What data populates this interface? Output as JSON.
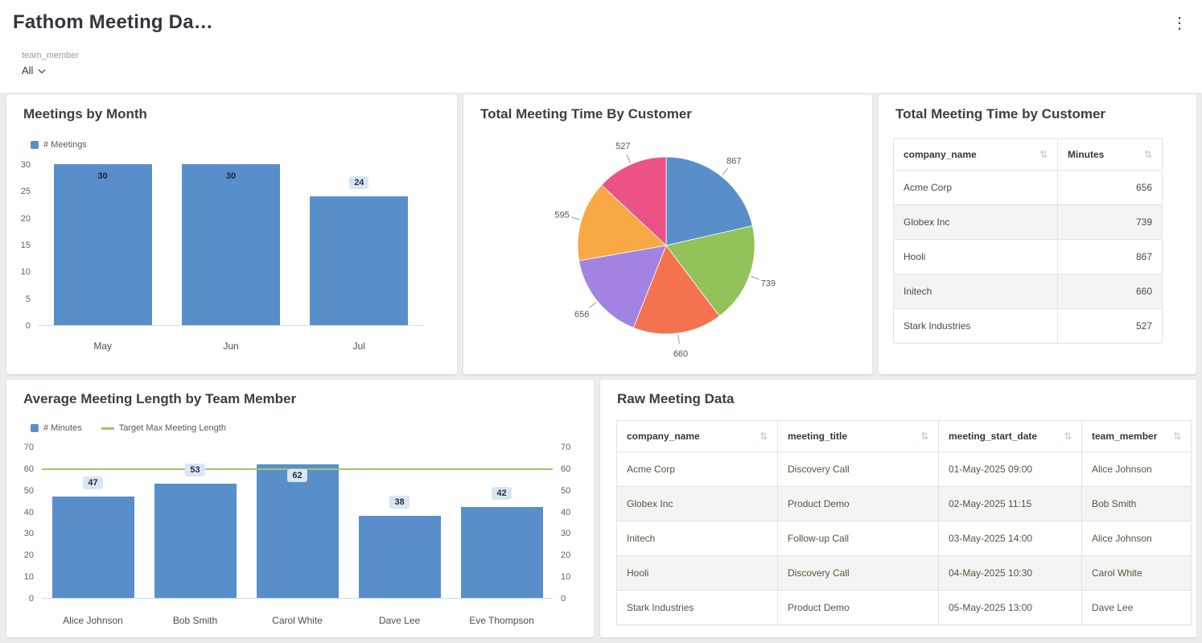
{
  "header": {
    "title": "Fathom Meeting Da…",
    "kebab_icon": "⋮"
  },
  "filter": {
    "label": "team_member",
    "value": "All"
  },
  "panels": {
    "meetings_by_month": {
      "title": "Meetings by Month"
    },
    "total_time_pie": {
      "title": "Total Meeting Time By Customer"
    },
    "total_time_table": {
      "title": "Total Meeting Time by Customer",
      "columns": [
        "company_name",
        "Minutes"
      ],
      "rows": [
        [
          "Acme Corp",
          656
        ],
        [
          "Globex Inc",
          739
        ],
        [
          "Hooli",
          867
        ],
        [
          "Initech",
          660
        ],
        [
          "Stark Industries",
          527
        ]
      ]
    },
    "avg_length": {
      "title": "Average Meeting Length by Team Member"
    },
    "raw_data": {
      "title": "Raw Meeting Data",
      "columns": [
        "company_name",
        "meeting_title",
        "meeting_start_date",
        "team_member"
      ],
      "rows": [
        [
          "Acme Corp",
          "Discovery Call",
          "01-May-2025 09:00",
          "Alice Johnson"
        ],
        [
          "Globex Inc",
          "Product Demo",
          "02-May-2025 11:15",
          "Bob Smith"
        ],
        [
          "Initech",
          "Follow-up Call",
          "03-May-2025 14:00",
          "Alice Johnson"
        ],
        [
          "Hooli",
          "Discovery Call",
          "04-May-2025 10:30",
          "Carol White"
        ],
        [
          "Stark Industries",
          "Product Demo",
          "05-May-2025 13:00",
          "Dave Lee"
        ]
      ]
    }
  },
  "chart_data": [
    {
      "id": "meetings_by_month",
      "type": "bar",
      "title": "Meetings by Month",
      "legend": [
        "# Meetings"
      ],
      "categories": [
        "May",
        "Jun",
        "Jul"
      ],
      "values": [
        30,
        30,
        24
      ],
      "ylim": [
        0,
        30
      ],
      "yticks": [
        0,
        5,
        10,
        15,
        20,
        25,
        30
      ],
      "bar_color": "#588fca",
      "grid": false,
      "legend_position": "top-left"
    },
    {
      "id": "total_meeting_time_by_customer",
      "type": "pie",
      "title": "Total Meeting Time By Customer",
      "values": [
        867,
        739,
        660,
        656,
        595,
        527
      ],
      "colors": [
        "#588fca",
        "#92c25a",
        "#f4724e",
        "#a383e2",
        "#f8a845",
        "#ec5285"
      ],
      "labels_shown": "values",
      "start_angle_deg": 0,
      "direction": "clockwise"
    },
    {
      "id": "avg_meeting_length_by_team_member",
      "type": "bar",
      "title": "Average Meeting Length by Team Member",
      "legend": [
        "# Minutes",
        "Target Max Meeting Length"
      ],
      "categories": [
        "Alice Johnson",
        "Bob Smith",
        "Carol White",
        "Dave Lee",
        "Eve Thompson"
      ],
      "values": [
        47,
        53,
        62,
        38,
        42
      ],
      "ylim": [
        0,
        70
      ],
      "yticks": [
        0,
        10,
        20,
        30,
        40,
        50,
        60,
        70
      ],
      "target_line": 60,
      "target_color": "#9dc96d",
      "bar_color": "#588fca",
      "right_axis": true,
      "grid": false,
      "legend_position": "top-left"
    }
  ]
}
